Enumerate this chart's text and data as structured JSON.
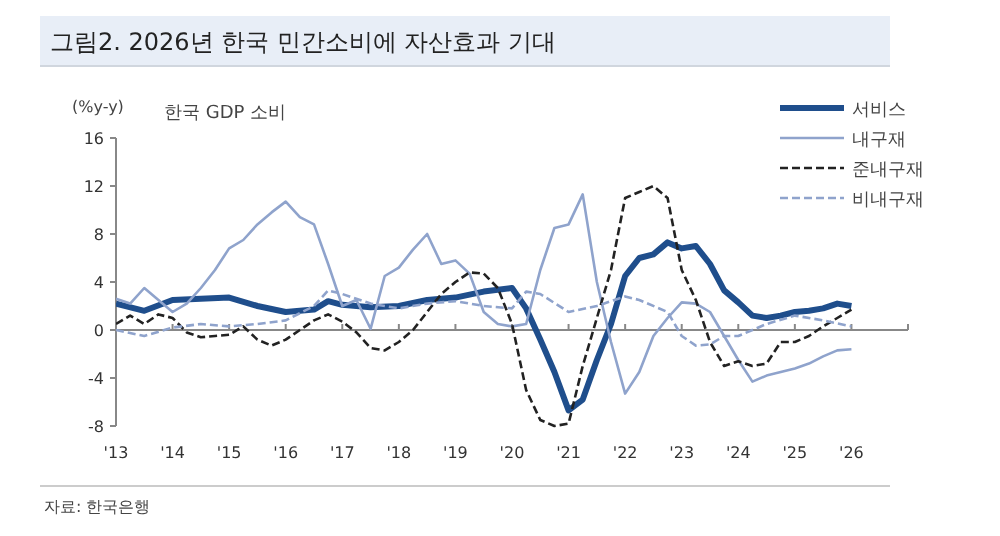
{
  "chart_data": {
    "type": "line",
    "title": "그림2. 2026년 한국 민간소비에 자산효과 기대",
    "subtitle": "한국 GDP 소비",
    "ylabel": "(%y-y)",
    "annotations": [
      "자료: 한국은행"
    ],
    "xlim": [
      2013,
      2027
    ],
    "ylim": [
      -8,
      16
    ],
    "yticks": [
      -8,
      -4,
      0,
      4,
      8,
      12,
      16
    ],
    "xticks": [
      {
        "value": 2013,
        "label": "'13"
      },
      {
        "value": 2014,
        "label": "'14"
      },
      {
        "value": 2015,
        "label": "'15"
      },
      {
        "value": 2016,
        "label": "'16"
      },
      {
        "value": 2017,
        "label": "'17"
      },
      {
        "value": 2018,
        "label": "'18"
      },
      {
        "value": 2019,
        "label": "'19"
      },
      {
        "value": 2020,
        "label": "'20"
      },
      {
        "value": 2021,
        "label": "'21"
      },
      {
        "value": 2022,
        "label": "'22"
      },
      {
        "value": 2023,
        "label": "'23"
      },
      {
        "value": 2024,
        "label": "'24"
      },
      {
        "value": 2025,
        "label": "'25"
      },
      {
        "value": 2026,
        "label": "'26"
      },
      {
        "value": 2027,
        "label": null
      }
    ],
    "legend": "top right",
    "marker": "none",
    "series": [
      {
        "name": "서비스",
        "color": "#1f4e8c",
        "line_style": "solid",
        "x": [
          2013,
          2013.5,
          2014,
          2015,
          2015.5,
          2016,
          2016.5,
          2016.75,
          2017,
          2017.5,
          2018,
          2018.5,
          2019,
          2019.5,
          2020,
          2020.25,
          2020.5,
          2020.75,
          2021,
          2021.25,
          2021.5,
          2021.75,
          2022,
          2022.25,
          2022.5,
          2022.75,
          2023,
          2023.25,
          2023.5,
          2023.75,
          2024,
          2024.25,
          2024.5,
          2024.75,
          2025,
          2025.25,
          2025.5,
          2025.75,
          2026
        ],
        "values": [
          2.2,
          1.6,
          2.5,
          2.7,
          2.0,
          1.5,
          1.7,
          2.4,
          2.1,
          1.9,
          2.0,
          2.5,
          2.7,
          3.2,
          3.5,
          1.8,
          -0.8,
          -3.5,
          -6.7,
          -5.8,
          -2.5,
          0.5,
          4.5,
          6.0,
          6.3,
          7.3,
          6.8,
          7.0,
          5.5,
          3.3,
          2.3,
          1.2,
          1.0,
          1.2,
          1.5,
          1.6,
          1.8,
          2.2,
          2.0
        ]
      },
      {
        "name": "내구재",
        "color": "#8fa3cc",
        "line_style": "solid",
        "x": [
          2013,
          2013.25,
          2013.5,
          2013.75,
          2014,
          2014.25,
          2014.5,
          2014.75,
          2015,
          2015.25,
          2015.5,
          2015.75,
          2016,
          2016.25,
          2016.5,
          2016.75,
          2017,
          2017.25,
          2017.5,
          2017.75,
          2018,
          2018.25,
          2018.5,
          2018.75,
          2019,
          2019.25,
          2019.5,
          2019.75,
          2020,
          2020.25,
          2020.5,
          2020.75,
          2021,
          2021.25,
          2021.5,
          2021.75,
          2022,
          2022.25,
          2022.5,
          2022.75,
          2023,
          2023.25,
          2023.5,
          2023.75,
          2024,
          2024.25,
          2024.5,
          2024.75,
          2025,
          2025.25,
          2025.5,
          2025.75,
          2026
        ],
        "values": [
          2.6,
          2.2,
          3.5,
          2.5,
          1.5,
          2.2,
          3.5,
          5.0,
          6.8,
          7.5,
          8.8,
          9.8,
          10.7,
          9.4,
          8.8,
          5.5,
          2.0,
          2.5,
          0.1,
          4.5,
          5.2,
          6.7,
          8.0,
          5.5,
          5.8,
          4.7,
          1.5,
          0.5,
          0.3,
          0.5,
          5.0,
          8.5,
          8.8,
          11.3,
          4.0,
          -1.0,
          -5.3,
          -3.5,
          -0.5,
          1.0,
          2.3,
          2.2,
          1.5,
          -0.5,
          -2.5,
          -4.3,
          -3.8,
          -3.5,
          -3.2,
          -2.8,
          -2.2,
          -1.7,
          -1.6
        ]
      },
      {
        "name": "준내구재",
        "color": "#222222",
        "line_style": "dashed",
        "x": [
          2013,
          2013.25,
          2013.5,
          2013.75,
          2014,
          2014.25,
          2014.5,
          2014.75,
          2015,
          2015.25,
          2015.5,
          2015.75,
          2016,
          2016.25,
          2016.5,
          2016.75,
          2017,
          2017.25,
          2017.5,
          2017.75,
          2018,
          2018.25,
          2018.5,
          2018.75,
          2019,
          2019.25,
          2019.5,
          2019.75,
          2020,
          2020.25,
          2020.5,
          2020.75,
          2021,
          2021.25,
          2021.5,
          2021.75,
          2022,
          2022.25,
          2022.5,
          2022.75,
          2023,
          2023.25,
          2023.5,
          2023.75,
          2024,
          2024.25,
          2024.5,
          2024.75,
          2025,
          2025.25,
          2025.5,
          2025.75,
          2026
        ],
        "values": [
          0.5,
          1.2,
          0.5,
          1.3,
          1.0,
          -0.2,
          -0.6,
          -0.5,
          -0.4,
          0.3,
          -0.8,
          -1.3,
          -0.8,
          0.0,
          0.8,
          1.3,
          0.7,
          -0.2,
          -1.5,
          -1.7,
          -1.0,
          0.0,
          1.5,
          3.0,
          4.0,
          4.8,
          4.7,
          3.5,
          0.5,
          -5.0,
          -7.5,
          -8.0,
          -7.8,
          -3.0,
          1.0,
          5.0,
          11.0,
          11.5,
          12.0,
          11.0,
          5.0,
          2.5,
          -1.0,
          -3.0,
          -2.6,
          -3.0,
          -2.8,
          -1.0,
          -1.0,
          -0.5,
          0.3,
          1.0,
          1.7
        ]
      },
      {
        "name": "비내구재",
        "color": "#8fa3cc",
        "line_style": "dashed",
        "x": [
          2013,
          2013.5,
          2014,
          2014.5,
          2015,
          2015.5,
          2016,
          2016.5,
          2016.75,
          2017,
          2017.5,
          2018,
          2018.5,
          2019,
          2019.5,
          2020,
          2020.25,
          2020.5,
          2021,
          2021.5,
          2022,
          2022.25,
          2022.75,
          2023,
          2023.25,
          2023.5,
          2023.75,
          2024,
          2024.5,
          2025,
          2025.5,
          2026
        ],
        "values": [
          0.0,
          -0.5,
          0.2,
          0.5,
          0.3,
          0.5,
          0.8,
          2.0,
          3.3,
          3.0,
          2.2,
          1.8,
          2.2,
          2.4,
          2.0,
          1.8,
          3.2,
          3.0,
          1.5,
          2.0,
          2.8,
          2.5,
          1.5,
          -0.5,
          -1.3,
          -1.2,
          -0.5,
          -0.5,
          0.5,
          1.2,
          0.8,
          0.3
        ]
      }
    ]
  }
}
